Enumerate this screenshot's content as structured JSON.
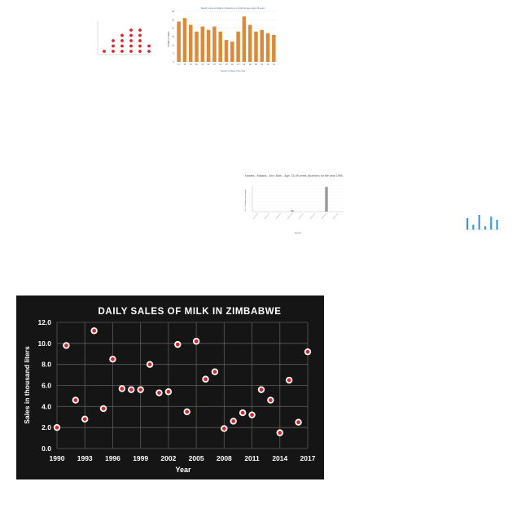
{
  "colors": {
    "background": "#ffffff",
    "dark_panel": "#151515",
    "red_dot": "#d9262b",
    "orange_bar": "#d98b3a",
    "blue_bar": "#3a9ad9",
    "gray_bar": "#9b9b9b",
    "grid": "#5a5a5a"
  },
  "chart_data": [
    {
      "type": "scatter",
      "title": "",
      "series": [
        {
          "values": [
            1,
            3,
            4,
            5,
            5,
            2
          ]
        }
      ],
      "marker": "red-dot-stacks"
    },
    {
      "type": "bar",
      "title": "Weekly count of Deaths in Wisconsin in 2024 for age under 25 years",
      "xlabel": "Number of Week of the Year",
      "ylabel": "Number of Deaths",
      "categories": [
        "17",
        "18",
        "19",
        "20",
        "21",
        "22",
        "23",
        "24",
        "25",
        "26",
        "27",
        "28",
        "29",
        "30",
        "31",
        "32",
        "33"
      ],
      "values": [
        24,
        26,
        22,
        18,
        21,
        19,
        21,
        18,
        13,
        12,
        18,
        27,
        22,
        18,
        19,
        17,
        16
      ],
      "ylim": [
        0,
        30
      ],
      "yticks": [
        "0",
        "5",
        "10",
        "15",
        "20",
        "25",
        "30"
      ]
    },
    {
      "type": "bar",
      "title": "Deaths - Malaria - Sex: Both - Age: 15-49 years (Number) for the year 1995",
      "xlabel": "Country",
      "ylabel": "No. of Deaths in thousands",
      "categories": [
        "c1",
        "c2",
        "c3",
        "c4",
        "c5",
        "c6",
        "c7",
        "c8"
      ],
      "values": [
        0,
        0,
        0,
        2,
        0,
        0,
        38,
        0
      ],
      "ylim": [
        0,
        40
      ]
    },
    {
      "type": "bar",
      "title": "",
      "series": [
        {
          "values": [
            7,
            3,
            9,
            2,
            8,
            6
          ]
        }
      ]
    },
    {
      "type": "scatter",
      "title": "DAILY SALES OF MILK IN ZIMBABWE",
      "xlabel": "Year",
      "ylabel": "Sales in thousand liters",
      "xlim": [
        1990,
        2017
      ],
      "ylim": [
        0,
        12
      ],
      "xticks": [
        "1990",
        "1993",
        "1996",
        "1999",
        "2002",
        "2005",
        "2008",
        "2011",
        "2014",
        "2017"
      ],
      "yticks": [
        "0.0",
        "2.0",
        "4.0",
        "6.0",
        "8.0",
        "10.0",
        "12.0"
      ],
      "grid": true,
      "x": [
        1990,
        1991,
        1992,
        1993,
        1994,
        1995,
        1996,
        1997,
        1998,
        1999,
        2000,
        2001,
        2002,
        2003,
        2004,
        2005,
        2006,
        2007,
        2008,
        2009,
        2010,
        2011,
        2012,
        2013,
        2014,
        2015,
        2016,
        2017
      ],
      "y": [
        2.0,
        9.8,
        4.6,
        2.8,
        11.2,
        3.8,
        8.5,
        5.7,
        5.6,
        5.6,
        8.0,
        5.3,
        5.4,
        9.9,
        3.5,
        10.2,
        6.6,
        7.3,
        1.9,
        2.6,
        3.4,
        3.2,
        5.6,
        4.6,
        1.5,
        6.5,
        2.5,
        9.2
      ]
    }
  ]
}
